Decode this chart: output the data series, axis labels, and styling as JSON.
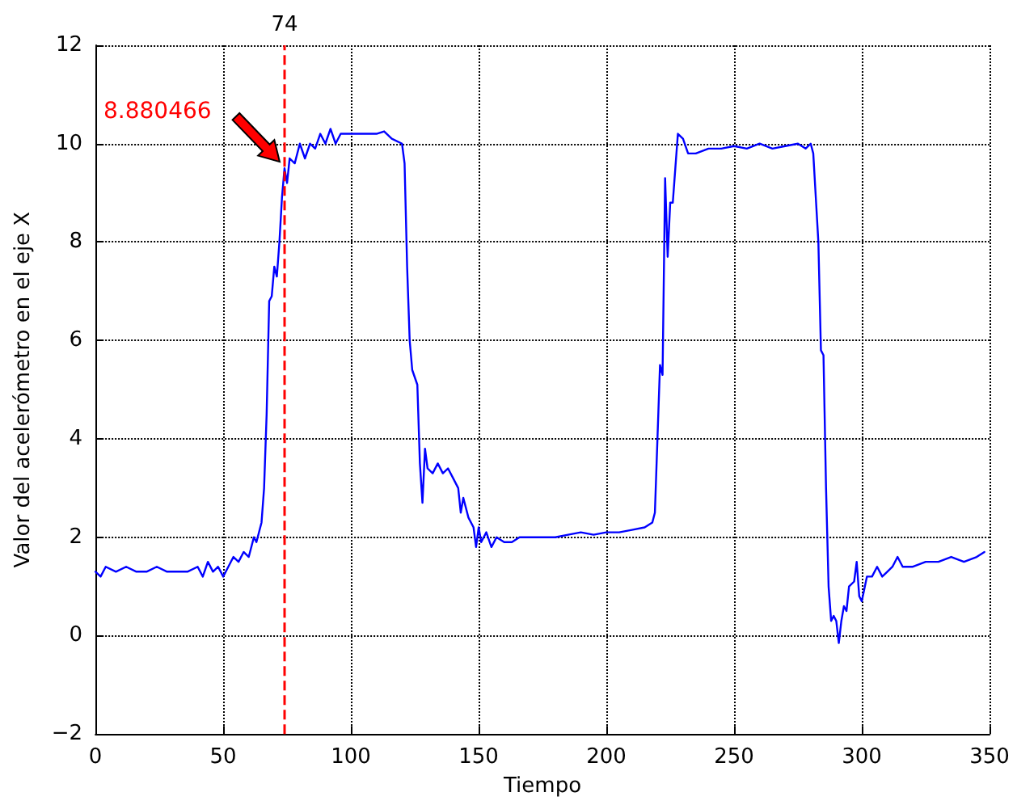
{
  "chart_data": {
    "type": "line",
    "xlabel": "Tiempo",
    "ylabel": "Valor del acelerómetro en el eje X",
    "xlim": [
      0,
      350
    ],
    "xticks": [
      0,
      50,
      100,
      150,
      200,
      250,
      300,
      350
    ],
    "ylim": [
      -2,
      12
    ],
    "yticks": [
      {
        "value": -2,
        "label": "−2"
      },
      0,
      2,
      4,
      6,
      8,
      10,
      12
    ],
    "grid": true,
    "ref_lines": [
      {
        "axis": "x",
        "value": 74,
        "label": "74",
        "color": "#ff0000",
        "line_style": "dashed"
      }
    ],
    "annotations": [
      "8.880466"
    ],
    "series": [
      {
        "color": "#0000ff",
        "x": [
          0,
          2,
          4,
          8,
          12,
          16,
          20,
          24,
          28,
          32,
          36,
          40,
          42,
          44,
          46,
          48,
          50,
          52,
          54,
          56,
          58,
          60,
          62,
          63,
          65,
          66,
          67,
          68,
          69,
          70,
          71,
          72,
          73,
          74,
          75,
          76,
          78,
          80,
          82,
          84,
          86,
          88,
          90,
          92,
          94,
          96,
          100,
          105,
          110,
          113,
          116,
          120,
          121,
          122,
          123,
          124,
          126,
          127,
          128,
          129,
          130,
          132,
          134,
          136,
          138,
          140,
          142,
          143,
          144,
          146,
          148,
          149,
          150,
          151,
          153,
          155,
          157,
          160,
          163,
          166,
          170,
          175,
          180,
          185,
          190,
          195,
          200,
          205,
          210,
          215,
          218,
          219,
          220,
          221,
          222,
          223,
          224,
          225,
          226,
          227,
          228,
          230,
          232,
          235,
          240,
          245,
          250,
          255,
          260,
          265,
          270,
          275,
          278,
          280,
          281,
          283,
          284,
          285,
          286,
          287,
          288,
          289,
          290,
          291,
          292,
          293,
          294,
          295,
          297,
          298,
          299,
          300,
          302,
          304,
          306,
          308,
          310,
          312,
          314,
          316,
          320,
          325,
          330,
          335,
          340,
          345,
          348
        ],
        "values": [
          1.3,
          1.2,
          1.4,
          1.3,
          1.4,
          1.3,
          1.3,
          1.4,
          1.3,
          1.3,
          1.3,
          1.4,
          1.2,
          1.5,
          1.3,
          1.4,
          1.2,
          1.4,
          1.6,
          1.5,
          1.7,
          1.6,
          2.0,
          1.9,
          2.3,
          3.0,
          4.5,
          6.8,
          6.9,
          7.5,
          7.3,
          8.0,
          8.9,
          9.5,
          9.2,
          9.7,
          9.6,
          10.0,
          9.7,
          10.0,
          9.9,
          10.2,
          10.0,
          10.3,
          10.0,
          10.2,
          10.2,
          10.2,
          10.2,
          10.25,
          10.1,
          10.0,
          9.6,
          7.5,
          6.0,
          5.4,
          5.1,
          3.5,
          2.7,
          3.8,
          3.4,
          3.3,
          3.5,
          3.3,
          3.4,
          3.2,
          3.0,
          2.5,
          2.8,
          2.4,
          2.2,
          1.8,
          2.2,
          1.9,
          2.1,
          1.8,
          2.0,
          1.9,
          1.9,
          2.0,
          2.0,
          2.0,
          2.0,
          2.05,
          2.1,
          2.05,
          2.1,
          2.1,
          2.15,
          2.2,
          2.3,
          2.5,
          4.0,
          5.5,
          5.3,
          9.3,
          7.7,
          8.8,
          8.8,
          9.5,
          10.2,
          10.1,
          9.8,
          9.8,
          9.9,
          9.9,
          9.95,
          9.9,
          10.0,
          9.9,
          9.95,
          10.0,
          9.9,
          10.0,
          9.8,
          8.0,
          5.8,
          5.7,
          3.0,
          1.0,
          0.3,
          0.4,
          0.3,
          -0.15,
          0.3,
          0.6,
          0.5,
          1.0,
          1.1,
          1.5,
          0.8,
          0.7,
          1.2,
          1.2,
          1.4,
          1.2,
          1.3,
          1.4,
          1.6,
          1.4,
          1.4,
          1.5,
          1.5,
          1.6,
          1.5,
          1.6,
          1.7
        ]
      }
    ]
  }
}
